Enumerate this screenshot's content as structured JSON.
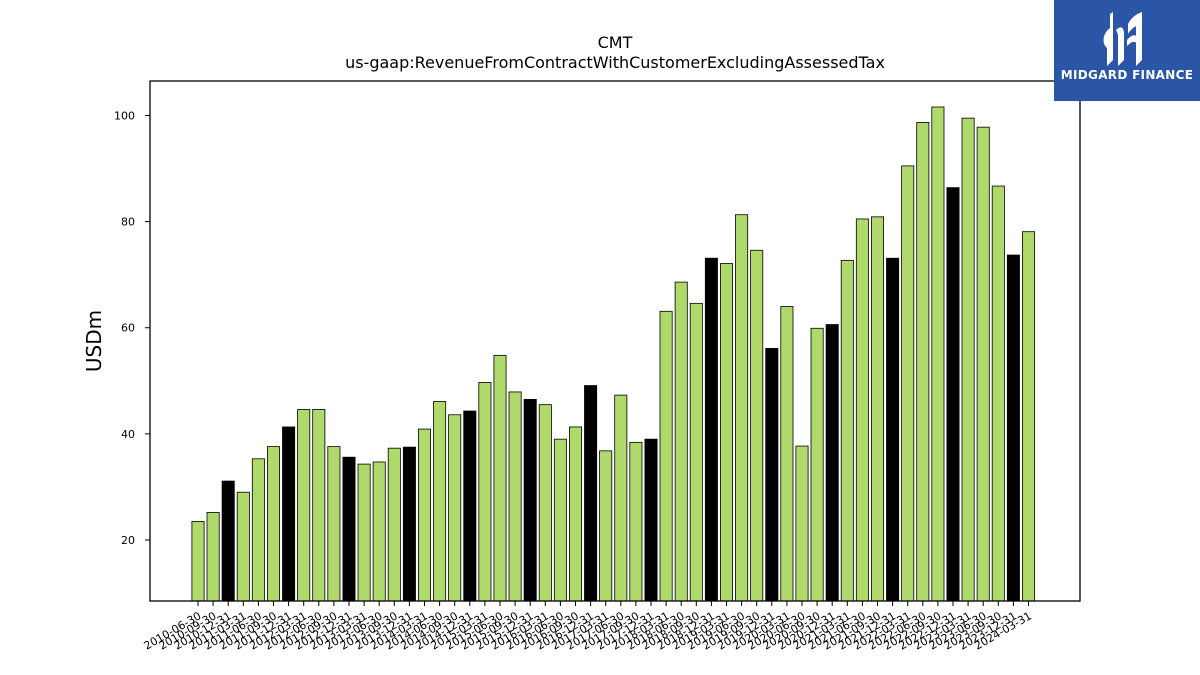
{
  "chart_data": {
    "type": "bar",
    "title": "CMT",
    "subtitle": "us-gaap:RevenueFromContractWithCustomerExcludingAssessedTax",
    "xlabel": "",
    "ylabel": "USDm",
    "ylim": [
      8.5,
      106.5
    ],
    "yticks": [
      20,
      40,
      60,
      80,
      100
    ],
    "grid": false,
    "categories": [
      "2010-06-30",
      "2010-09-30",
      "2010-12-31",
      "2011-03-31",
      "2011-06-30",
      "2011-09-30",
      "2011-12-31",
      "2012-03-31",
      "2012-06-30",
      "2012-09-30",
      "2012-12-31",
      "2013-03-31",
      "2013-06-30",
      "2013-09-30",
      "2013-12-31",
      "2014-03-31",
      "2014-06-30",
      "2014-09-30",
      "2014-12-31",
      "2015-03-31",
      "2015-06-30",
      "2015-09-30",
      "2015-12-31",
      "2016-03-31",
      "2016-06-30",
      "2016-09-30",
      "2016-12-31",
      "2017-03-31",
      "2017-06-30",
      "2017-09-30",
      "2017-12-31",
      "2018-03-31",
      "2018-06-30",
      "2018-09-30",
      "2018-12-31",
      "2019-03-31",
      "2019-06-30",
      "2019-09-30",
      "2019-12-31",
      "2020-03-31",
      "2020-06-30",
      "2020-09-30",
      "2020-12-31",
      "2021-03-31",
      "2021-06-30",
      "2021-09-30",
      "2021-12-31",
      "2022-03-31",
      "2022-06-30",
      "2022-09-30",
      "2022-12-31",
      "2023-03-31",
      "2023-06-30",
      "2023-09-30",
      "2023-12-31",
      "2024-03-31"
    ],
    "values": [
      23.5,
      25.2,
      31.1,
      29.0,
      35.3,
      37.6,
      41.3,
      44.6,
      44.6,
      37.6,
      35.6,
      34.3,
      34.7,
      37.3,
      37.5,
      40.9,
      46.1,
      43.6,
      44.3,
      49.7,
      54.8,
      47.9,
      46.5,
      45.5,
      39.0,
      41.3,
      49.1,
      36.8,
      47.3,
      38.4,
      39.0,
      63.1,
      68.6,
      64.6,
      73.1,
      72.1,
      81.3,
      74.6,
      56.1,
      64.0,
      37.7,
      59.9,
      60.6,
      72.7,
      80.5,
      80.9,
      73.1,
      90.5,
      98.7,
      101.6,
      86.4,
      99.5,
      97.8,
      86.7,
      73.7,
      78.1
    ],
    "highlight": [
      false,
      false,
      true,
      false,
      false,
      false,
      true,
      false,
      false,
      false,
      true,
      false,
      false,
      false,
      true,
      false,
      false,
      false,
      true,
      false,
      false,
      false,
      true,
      false,
      false,
      false,
      true,
      false,
      false,
      false,
      true,
      false,
      false,
      false,
      true,
      false,
      false,
      false,
      true,
      false,
      false,
      false,
      true,
      false,
      false,
      false,
      true,
      false,
      false,
      false,
      true,
      false,
      false,
      false,
      true,
      false
    ],
    "colors": {
      "bar": "#b0d96b",
      "highlight": "#000000",
      "edge": "#000000"
    }
  },
  "logo": {
    "text": "MIDGARD FINANCE",
    "color": "#2b56a8"
  }
}
